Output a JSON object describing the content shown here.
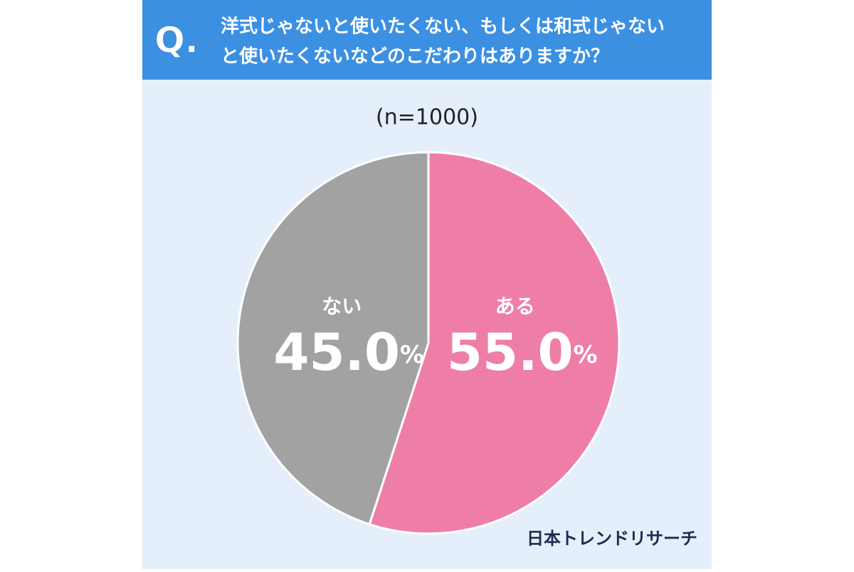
{
  "chart_data": {
    "type": "pie",
    "badge": "Q.",
    "title": [
      "洋式じゃないと使いたくない、もしくは和式じゃない",
      "と使いたくないなどのこだわりはありますか？"
    ],
    "subtitle": "(n=1000)",
    "categories": [
      "ある",
      "ない"
    ],
    "values": [
      55.0,
      45.0
    ],
    "value_labels": [
      "55.0%",
      "45.0%"
    ],
    "colors": [
      "#ee7ea8",
      "#a2a2a2"
    ],
    "source": "日本トレンドリサーチ"
  }
}
